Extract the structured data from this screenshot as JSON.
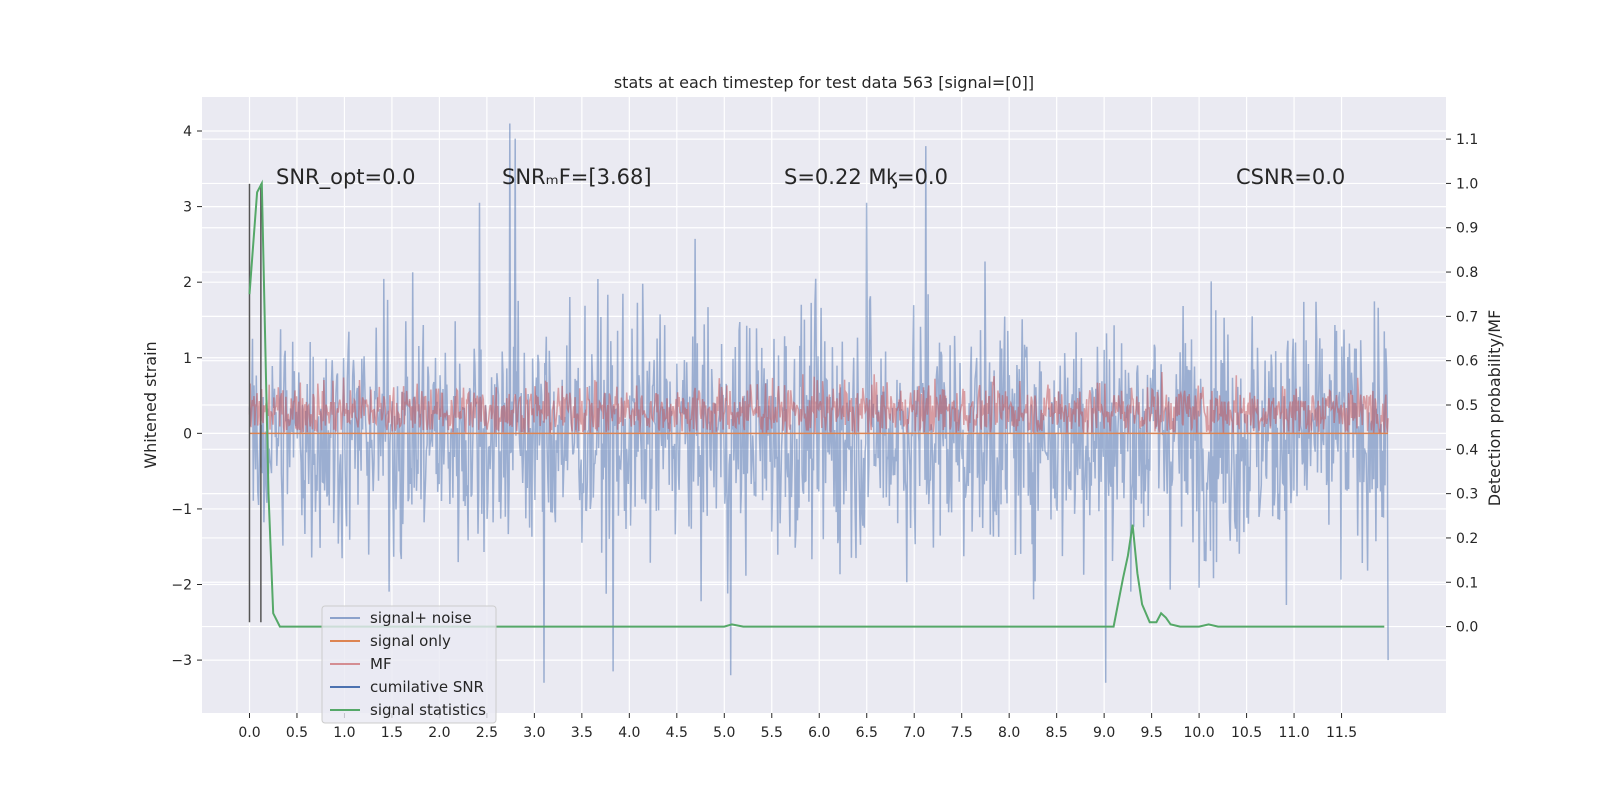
{
  "chart_data": {
    "type": "line",
    "title": "stats at each timestep for test data 563 [signal=[0]]",
    "ylabel": "Whitened strain",
    "y2label": "Detection probability/MF",
    "xlim": [
      -0.5,
      12.6
    ],
    "ylim": [
      -3.7,
      4.45
    ],
    "y2lim": [
      -0.195,
      1.195
    ],
    "x_ticks": [
      0.0,
      0.5,
      1.0,
      1.5,
      2.0,
      2.5,
      3.0,
      3.5,
      4.0,
      4.5,
      5.0,
      5.5,
      6.0,
      6.5,
      7.0,
      7.5,
      8.0,
      8.5,
      9.0,
      9.5,
      10.0,
      10.5,
      11.0,
      11.5
    ],
    "x_tick_labels": [
      "0.0",
      "0.5",
      "1.0",
      "1.5",
      "2.0",
      "2.5",
      "3.0",
      "3.5",
      "4.0",
      "4.5",
      "5.0",
      "5.5",
      "6.0",
      "6.5",
      "7.0",
      "7.5",
      "8.0",
      "8.5",
      "9.0",
      "9.5",
      "10.0",
      "10.5",
      "11.0",
      "11.5"
    ],
    "y_ticks": [
      4,
      3,
      2,
      1,
      0,
      -1,
      -2,
      -3
    ],
    "y_tick_labels": [
      "4",
      "3",
      "2",
      "1",
      "0",
      "−1",
      "−2",
      "−3"
    ],
    "y2_ticks": [
      1.1,
      1.0,
      0.9,
      0.8,
      0.7,
      0.6,
      0.5,
      0.4,
      0.3,
      0.2,
      0.1,
      0.0
    ],
    "y2_tick_labels": [
      "1.1",
      "1.0",
      "0.9",
      "0.8",
      "0.7",
      "0.6",
      "0.5",
      "0.4",
      "0.3",
      "0.2",
      "0.1",
      "0.0"
    ],
    "grid": true,
    "annotations": [
      {
        "text": "SNR_opt=0.0"
      },
      {
        "text": "SNRₘF=[3.68]"
      },
      {
        "text": "S=0.22   Mᶄ=0.0"
      },
      {
        "text": "CSNR=0.0"
      }
    ],
    "legend": {
      "placement": "lower-left",
      "entries": [
        {
          "label": "signal+ noise",
          "color": "#4c72b0"
        },
        {
          "label": "signal only",
          "color": "#dd8452"
        },
        {
          "label": "MF",
          "color": "#c44e52"
        },
        {
          "label": "cumilative SNR",
          "color": "#4c72b0"
        },
        {
          "label": "signal statistics",
          "color": "#55a868"
        }
      ]
    },
    "series": [
      {
        "name": "signal+ noise",
        "axis": "left",
        "x_range": [
          0.0,
          11.99
        ],
        "color": "#4c72b0",
        "alpha": 0.5,
        "envelope_description": "noise band roughly between -2.5 and 2.5 with spikes",
        "peaks": [
          {
            "x": 2.74,
            "y": 4.1
          },
          {
            "x": 2.8,
            "y": 3.9
          },
          {
            "x": 7.12,
            "y": 3.8
          },
          {
            "x": 2.42,
            "y": 3.05
          },
          {
            "x": 6.5,
            "y": 3.05
          },
          {
            "x": 3.1,
            "y": -3.3
          },
          {
            "x": 9.02,
            "y": -3.3
          },
          {
            "x": 5.07,
            "y": -3.2
          },
          {
            "x": 3.83,
            "y": -3.15
          },
          {
            "x": 11.99,
            "y": -3.0
          }
        ]
      },
      {
        "name": "signal only",
        "axis": "left",
        "x": [
          0.0,
          11.99
        ],
        "y": [
          0.0,
          0.0
        ],
        "color": "#dd8452"
      },
      {
        "name": "MF",
        "axis": "left",
        "x_range": [
          0.0,
          11.99
        ],
        "color": "#c44e52",
        "alpha": 0.5,
        "envelope_description": "band roughly between 0.0 and 0.9 centered near 0.3"
      },
      {
        "name": "cumilative SNR",
        "axis": "left",
        "x": [
          0.0,
          0.0,
          0.12,
          0.12
        ],
        "y": [
          3.3,
          -2.5,
          3.3,
          -2.5
        ],
        "color": "#4c72b0"
      },
      {
        "name": "signal statistics",
        "axis": "right",
        "x": [
          0.0,
          0.08,
          0.13,
          0.2,
          0.25,
          0.32,
          0.4,
          0.6,
          1.0,
          2.0,
          3.0,
          4.0,
          4.5,
          4.9,
          5.0,
          5.08,
          5.2,
          6.0,
          7.0,
          8.0,
          8.5,
          9.0,
          9.1,
          9.2,
          9.25,
          9.3,
          9.35,
          9.4,
          9.48,
          9.55,
          9.6,
          9.65,
          9.7,
          9.8,
          10.0,
          10.1,
          10.2,
          10.5,
          11.0,
          11.5,
          11.95
        ],
        "y": [
          0.75,
          0.98,
          1.0,
          0.3,
          0.03,
          0.0,
          0.0,
          0.0,
          0.0,
          0.0,
          0.0,
          0.0,
          0.0,
          0.0,
          0.0,
          0.005,
          0.0,
          0.0,
          0.0,
          0.0,
          0.0,
          0.0,
          0.0,
          0.11,
          0.16,
          0.23,
          0.12,
          0.05,
          0.01,
          0.01,
          0.03,
          0.02,
          0.005,
          0.0,
          0.0,
          0.005,
          0.0,
          0.0,
          0.0,
          0.0,
          0.0
        ],
        "color": "#55a868"
      }
    ]
  }
}
